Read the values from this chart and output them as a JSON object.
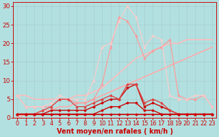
{
  "background_color": "#b2e0e0",
  "xlabel": "Vent moyen/en rafales ( km/h )",
  "xlabel_color": "#cc0000",
  "xlabel_fontsize": 7,
  "tick_color": "#cc0000",
  "tick_fontsize": 6,
  "ylim": [
    0,
    31
  ],
  "xlim": [
    -0.5,
    23.5
  ],
  "yticks": [
    0,
    5,
    10,
    15,
    20,
    25,
    30
  ],
  "xticks": [
    0,
    1,
    2,
    3,
    4,
    5,
    6,
    7,
    8,
    9,
    10,
    11,
    12,
    13,
    14,
    15,
    16,
    17,
    18,
    19,
    20,
    21,
    22,
    23
  ],
  "series": [
    {
      "x": [
        0,
        1,
        2,
        3,
        4,
        5,
        6,
        7,
        8,
        9,
        10,
        11,
        12,
        13,
        14,
        15,
        16,
        17,
        18,
        19,
        20,
        21,
        22,
        23
      ],
      "y": [
        1,
        1,
        1,
        1,
        1,
        1,
        1,
        1,
        1,
        1,
        1,
        1,
        1,
        1,
        1,
        1,
        1,
        1,
        1,
        1,
        1,
        1,
        1,
        1
      ],
      "color": "#cc0000",
      "lw": 1.2,
      "marker": "D",
      "ms": 1.5,
      "alpha": 1.0,
      "zorder": 5
    },
    {
      "x": [
        0,
        1,
        2,
        3,
        4,
        5,
        6,
        7,
        8,
        9,
        10,
        11,
        12,
        13,
        14,
        15,
        16,
        17,
        18,
        19,
        20,
        21,
        22,
        23
      ],
      "y": [
        1,
        1,
        1,
        1,
        1,
        1,
        1,
        1,
        1,
        1,
        2,
        3,
        3,
        4,
        4,
        2,
        2,
        1,
        1,
        1,
        1,
        1,
        1,
        1
      ],
      "color": "#cc0000",
      "lw": 1.0,
      "marker": "D",
      "ms": 1.5,
      "alpha": 1.0,
      "zorder": 4
    },
    {
      "x": [
        0,
        1,
        2,
        3,
        4,
        5,
        6,
        7,
        8,
        9,
        10,
        11,
        12,
        13,
        14,
        15,
        16,
        17,
        18,
        19,
        20,
        21,
        22,
        23
      ],
      "y": [
        1,
        1,
        1,
        1,
        2,
        2,
        2,
        2,
        2,
        3,
        4,
        5,
        5,
        8,
        9,
        3,
        4,
        3,
        2,
        1,
        1,
        1,
        1,
        1
      ],
      "color": "#cc0000",
      "lw": 1.0,
      "marker": "D",
      "ms": 1.5,
      "alpha": 1.0,
      "zorder": 4
    },
    {
      "x": [
        0,
        1,
        2,
        3,
        4,
        5,
        6,
        7,
        8,
        9,
        10,
        11,
        12,
        13,
        14,
        15,
        16,
        17,
        18,
        19,
        20,
        21,
        22,
        23
      ],
      "y": [
        1,
        1,
        1,
        2,
        3,
        5,
        5,
        3,
        3,
        4,
        5,
        6,
        5,
        9,
        9,
        4,
        5,
        4,
        2,
        1,
        1,
        1,
        1,
        1
      ],
      "color": "#dd4444",
      "lw": 1.0,
      "marker": "^",
      "ms": 2.0,
      "alpha": 1.0,
      "zorder": 4
    },
    {
      "x": [
        0,
        1,
        2,
        3,
        4,
        5,
        6,
        7,
        8,
        9,
        10,
        11,
        12,
        13,
        14,
        15,
        16,
        17,
        18,
        19,
        20,
        21,
        22,
        23
      ],
      "y": [
        0,
        1,
        1,
        2,
        2,
        3,
        3,
        4,
        4,
        5,
        6,
        7,
        8,
        9,
        10,
        11,
        12,
        13,
        14,
        15,
        16,
        17,
        18,
        19
      ],
      "color": "#ffaaaa",
      "lw": 1.2,
      "marker": null,
      "ms": 0,
      "alpha": 1.0,
      "zorder": 2
    },
    {
      "x": [
        0,
        1,
        2,
        3,
        4,
        5,
        6,
        7,
        8,
        9,
        10,
        11,
        12,
        13,
        14,
        15,
        16,
        17,
        18,
        19,
        20,
        21,
        22,
        23
      ],
      "y": [
        6,
        6,
        5,
        5,
        5,
        5,
        5,
        6,
        6,
        7,
        8,
        10,
        12,
        14,
        16,
        17,
        18,
        19,
        20,
        20,
        21,
        21,
        21,
        21
      ],
      "color": "#ffbbbb",
      "lw": 1.2,
      "marker": null,
      "ms": 0,
      "alpha": 1.0,
      "zorder": 2
    },
    {
      "x": [
        0,
        1,
        2,
        3,
        4,
        5,
        6,
        7,
        8,
        9,
        10,
        11,
        12,
        13,
        14,
        15,
        16,
        17,
        18,
        19,
        20,
        21,
        22,
        23
      ],
      "y": [
        6,
        3,
        3,
        3,
        3,
        5,
        5,
        4,
        4,
        5,
        9,
        19,
        27,
        26,
        22,
        16,
        18,
        19,
        21,
        6,
        5,
        5,
        6,
        3
      ],
      "color": "#ff9999",
      "lw": 1.0,
      "marker": "^",
      "ms": 2.0,
      "alpha": 0.9,
      "zorder": 3
    },
    {
      "x": [
        0,
        1,
        2,
        3,
        4,
        5,
        6,
        7,
        8,
        9,
        10,
        11,
        12,
        13,
        14,
        15,
        16,
        17,
        18,
        19,
        20,
        21,
        22,
        23
      ],
      "y": [
        6,
        3,
        3,
        3,
        4,
        6,
        5,
        5,
        5,
        10,
        19,
        20,
        26,
        30,
        27,
        19,
        22,
        21,
        6,
        5,
        5,
        6,
        6,
        3
      ],
      "color": "#ffcccc",
      "lw": 1.0,
      "marker": "^",
      "ms": 2.0,
      "alpha": 0.85,
      "zorder": 3
    }
  ]
}
